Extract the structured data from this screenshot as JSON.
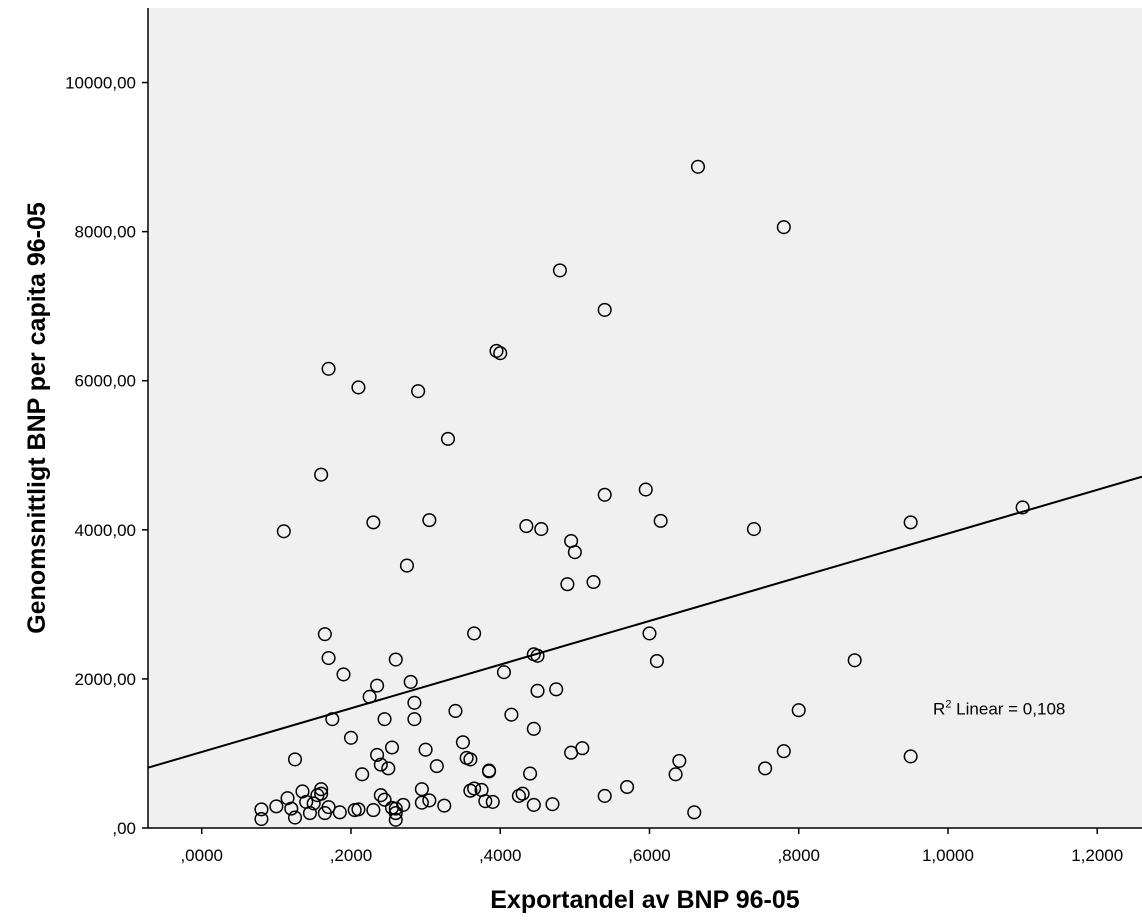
{
  "chart_data": {
    "type": "scatter",
    "xlabel": "Exportandel av BNP 96-05",
    "ylabel": "Genomsnittligt BNP per capita 96-05",
    "xlim": [
      -0.072,
      1.26
    ],
    "ylim": [
      0,
      11000
    ],
    "grid": false,
    "x_ticks": [
      0,
      0.2,
      0.4,
      0.6,
      0.8,
      1.0,
      1.2
    ],
    "x_tick_labels": [
      ",0000",
      ",2000",
      ",4000",
      ",6000",
      ",8000",
      "1,0000",
      "1,2000"
    ],
    "y_ticks": [
      0,
      2000,
      4000,
      6000,
      8000,
      10000
    ],
    "y_tick_labels": [
      ",00",
      "2000,00",
      "4000,00",
      "6000,00",
      "8000,00",
      "10000,00"
    ],
    "annotation": {
      "text_main": "R",
      "text_sup": "2",
      "text_rest": " Linear = 0,108",
      "x": 0.98,
      "y": 1520
    },
    "fit_line": {
      "intercept": 1020,
      "slope": 2930
    },
    "points": [
      [
        0.08,
        250
      ],
      [
        0.08,
        120
      ],
      [
        0.1,
        290
      ],
      [
        0.115,
        400
      ],
      [
        0.12,
        260
      ],
      [
        0.125,
        140
      ],
      [
        0.125,
        920
      ],
      [
        0.135,
        490
      ],
      [
        0.14,
        350
      ],
      [
        0.145,
        200
      ],
      [
        0.15,
        330
      ],
      [
        0.155,
        440
      ],
      [
        0.16,
        460
      ],
      [
        0.16,
        520
      ],
      [
        0.165,
        200
      ],
      [
        0.17,
        280
      ],
      [
        0.16,
        4740
      ],
      [
        0.165,
        2600
      ],
      [
        0.17,
        6160
      ],
      [
        0.17,
        2280
      ],
      [
        0.11,
        3980
      ],
      [
        0.175,
        1460
      ],
      [
        0.185,
        210
      ],
      [
        0.19,
        2060
      ],
      [
        0.2,
        1210
      ],
      [
        0.205,
        240
      ],
      [
        0.21,
        250
      ],
      [
        0.21,
        5910
      ],
      [
        0.215,
        720
      ],
      [
        0.225,
        1760
      ],
      [
        0.23,
        4100
      ],
      [
        0.23,
        240
      ],
      [
        0.235,
        1910
      ],
      [
        0.235,
        980
      ],
      [
        0.24,
        850
      ],
      [
        0.24,
        440
      ],
      [
        0.245,
        380
      ],
      [
        0.245,
        1460
      ],
      [
        0.25,
        800
      ],
      [
        0.255,
        270
      ],
      [
        0.255,
        1080
      ],
      [
        0.26,
        260
      ],
      [
        0.26,
        110
      ],
      [
        0.26,
        200
      ],
      [
        0.26,
        2260
      ],
      [
        0.27,
        310
      ],
      [
        0.275,
        3520
      ],
      [
        0.28,
        1960
      ],
      [
        0.285,
        1680
      ],
      [
        0.285,
        1460
      ],
      [
        0.29,
        5860
      ],
      [
        0.295,
        520
      ],
      [
        0.295,
        340
      ],
      [
        0.3,
        1050
      ],
      [
        0.305,
        4130
      ],
      [
        0.305,
        370
      ],
      [
        0.315,
        830
      ],
      [
        0.325,
        300
      ],
      [
        0.33,
        5220
      ],
      [
        0.34,
        1570
      ],
      [
        0.35,
        1150
      ],
      [
        0.355,
        940
      ],
      [
        0.36,
        920
      ],
      [
        0.36,
        500
      ],
      [
        0.365,
        2610
      ],
      [
        0.365,
        530
      ],
      [
        0.375,
        510
      ],
      [
        0.38,
        360
      ],
      [
        0.385,
        770
      ],
      [
        0.385,
        760
      ],
      [
        0.39,
        350
      ],
      [
        0.395,
        6400
      ],
      [
        0.4,
        6370
      ],
      [
        0.405,
        2090
      ],
      [
        0.415,
        1520
      ],
      [
        0.425,
        430
      ],
      [
        0.43,
        460
      ],
      [
        0.435,
        4050
      ],
      [
        0.44,
        730
      ],
      [
        0.445,
        2330
      ],
      [
        0.445,
        310
      ],
      [
        0.445,
        1330
      ],
      [
        0.45,
        1840
      ],
      [
        0.45,
        2310
      ],
      [
        0.455,
        4010
      ],
      [
        0.47,
        320
      ],
      [
        0.475,
        1860
      ],
      [
        0.48,
        7480
      ],
      [
        0.49,
        3270
      ],
      [
        0.495,
        3850
      ],
      [
        0.495,
        1010
      ],
      [
        0.5,
        3700
      ],
      [
        0.51,
        1070
      ],
      [
        0.525,
        3300
      ],
      [
        0.54,
        430
      ],
      [
        0.54,
        4470
      ],
      [
        0.54,
        6950
      ],
      [
        0.57,
        550
      ],
      [
        0.595,
        4540
      ],
      [
        0.6,
        2610
      ],
      [
        0.61,
        2240
      ],
      [
        0.615,
        4120
      ],
      [
        0.635,
        720
      ],
      [
        0.64,
        900
      ],
      [
        0.66,
        210
      ],
      [
        0.665,
        8870
      ],
      [
        0.74,
        4010
      ],
      [
        0.755,
        800
      ],
      [
        0.78,
        1030
      ],
      [
        0.78,
        8060
      ],
      [
        0.8,
        1580
      ],
      [
        0.875,
        2250
      ],
      [
        0.95,
        960
      ],
      [
        0.95,
        4100
      ],
      [
        1.1,
        4300
      ]
    ]
  }
}
